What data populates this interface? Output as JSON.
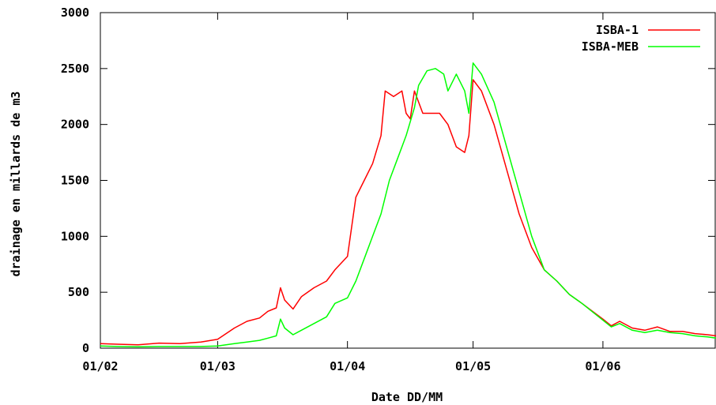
{
  "chart_data": {
    "type": "line",
    "xlabel": "Date DD/MM",
    "ylabel": "drainage en millards de m3",
    "ylim": [
      0,
      3000
    ],
    "x_range": [
      "01/02",
      "28/06"
    ],
    "x_tick_labels": [
      "01/02",
      "01/03",
      "01/04",
      "01/05",
      "01/06"
    ],
    "y_ticks": [
      0,
      500,
      1000,
      1500,
      2000,
      2500,
      3000
    ],
    "y_tick_labels": [
      "0",
      "500",
      "1000",
      "1500",
      "2000",
      "2500",
      "3000"
    ],
    "grid": false,
    "legend_position": "top-right",
    "series": [
      {
        "name": "ISBA-1",
        "color": "#ff0000",
        "points": [
          [
            "01/02",
            40
          ],
          [
            "05/02",
            35
          ],
          [
            "10/02",
            30
          ],
          [
            "15/02",
            45
          ],
          [
            "20/02",
            40
          ],
          [
            "25/02",
            55
          ],
          [
            "01/03",
            80
          ],
          [
            "05/03",
            180
          ],
          [
            "08/03",
            240
          ],
          [
            "11/03",
            270
          ],
          [
            "13/03",
            330
          ],
          [
            "15/03",
            360
          ],
          [
            "16/03",
            540
          ],
          [
            "17/03",
            430
          ],
          [
            "19/03",
            350
          ],
          [
            "21/03",
            460
          ],
          [
            "24/03",
            540
          ],
          [
            "27/03",
            600
          ],
          [
            "29/03",
            700
          ],
          [
            "01/04",
            820
          ],
          [
            "03/04",
            1350
          ],
          [
            "05/04",
            1500
          ],
          [
            "07/04",
            1650
          ],
          [
            "09/04",
            1900
          ],
          [
            "10/04",
            2300
          ],
          [
            "12/04",
            2250
          ],
          [
            "14/04",
            2300
          ],
          [
            "15/04",
            2100
          ],
          [
            "16/04",
            2050
          ],
          [
            "17/04",
            2300
          ],
          [
            "19/04",
            2100
          ],
          [
            "21/04",
            2100
          ],
          [
            "23/04",
            2100
          ],
          [
            "25/04",
            2000
          ],
          [
            "27/04",
            1800
          ],
          [
            "29/04",
            1750
          ],
          [
            "30/04",
            1900
          ],
          [
            "01/05",
            2400
          ],
          [
            "03/05",
            2300
          ],
          [
            "06/05",
            2000
          ],
          [
            "09/05",
            1600
          ],
          [
            "12/05",
            1200
          ],
          [
            "15/05",
            900
          ],
          [
            "18/05",
            700
          ],
          [
            "21/05",
            600
          ],
          [
            "24/05",
            480
          ],
          [
            "27/05",
            400
          ],
          [
            "01/06",
            260
          ],
          [
            "03/06",
            200
          ],
          [
            "05/06",
            240
          ],
          [
            "08/06",
            180
          ],
          [
            "11/06",
            160
          ],
          [
            "14/06",
            190
          ],
          [
            "17/06",
            150
          ],
          [
            "20/06",
            150
          ],
          [
            "23/06",
            130
          ],
          [
            "26/06",
            120
          ],
          [
            "28/06",
            110
          ]
        ]
      },
      {
        "name": "ISBA-MEB",
        "color": "#00ff00",
        "points": [
          [
            "01/02",
            20
          ],
          [
            "05/02",
            15
          ],
          [
            "10/02",
            12
          ],
          [
            "15/02",
            15
          ],
          [
            "20/02",
            15
          ],
          [
            "25/02",
            15
          ],
          [
            "01/03",
            20
          ],
          [
            "05/03",
            40
          ],
          [
            "08/03",
            55
          ],
          [
            "11/03",
            70
          ],
          [
            "13/03",
            90
          ],
          [
            "15/03",
            110
          ],
          [
            "16/03",
            260
          ],
          [
            "17/03",
            180
          ],
          [
            "19/03",
            120
          ],
          [
            "21/03",
            160
          ],
          [
            "24/03",
            220
          ],
          [
            "27/03",
            280
          ],
          [
            "29/03",
            400
          ],
          [
            "01/04",
            450
          ],
          [
            "03/04",
            600
          ],
          [
            "05/04",
            800
          ],
          [
            "07/04",
            1000
          ],
          [
            "09/04",
            1200
          ],
          [
            "11/04",
            1500
          ],
          [
            "13/04",
            1700
          ],
          [
            "15/04",
            1900
          ],
          [
            "17/04",
            2150
          ],
          [
            "18/04",
            2350
          ],
          [
            "20/04",
            2480
          ],
          [
            "22/04",
            2500
          ],
          [
            "24/04",
            2450
          ],
          [
            "25/04",
            2300
          ],
          [
            "27/04",
            2450
          ],
          [
            "29/04",
            2300
          ],
          [
            "30/04",
            2100
          ],
          [
            "01/05",
            2550
          ],
          [
            "03/05",
            2450
          ],
          [
            "06/05",
            2200
          ],
          [
            "09/05",
            1800
          ],
          [
            "12/05",
            1400
          ],
          [
            "15/05",
            1000
          ],
          [
            "18/05",
            700
          ],
          [
            "21/05",
            600
          ],
          [
            "24/05",
            480
          ],
          [
            "27/05",
            400
          ],
          [
            "01/06",
            250
          ],
          [
            "03/06",
            190
          ],
          [
            "05/06",
            220
          ],
          [
            "08/06",
            160
          ],
          [
            "11/06",
            140
          ],
          [
            "14/06",
            160
          ],
          [
            "17/06",
            140
          ],
          [
            "20/06",
            130
          ],
          [
            "23/06",
            110
          ],
          [
            "26/06",
            100
          ],
          [
            "28/06",
            90
          ]
        ]
      }
    ]
  }
}
